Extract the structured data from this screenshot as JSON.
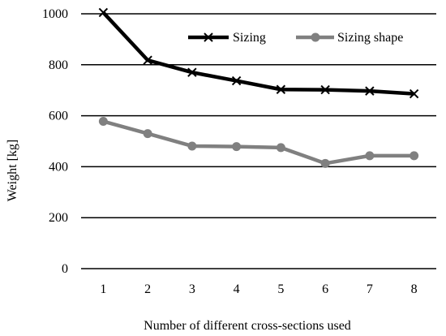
{
  "chart_data": {
    "type": "line",
    "x": [
      1,
      2,
      3,
      4,
      5,
      6,
      7,
      8
    ],
    "series": [
      {
        "name": "Sizing",
        "values": [
          1005,
          818,
          770,
          737,
          703,
          702,
          697,
          686
        ],
        "color": "#000000",
        "marker": "x"
      },
      {
        "name": "Sizing shape",
        "values": [
          578,
          530,
          481,
          479,
          475,
          413,
          443,
          443
        ],
        "color": "#808080",
        "marker": "circle"
      }
    ],
    "xlabel": "Number of different cross-sections used",
    "ylabel": "Weight [kg]",
    "ylim": [
      0,
      1000
    ],
    "yticks": [
      0,
      200,
      400,
      600,
      800,
      1000
    ],
    "grid": "horizontal",
    "legend_position": "top-right"
  }
}
